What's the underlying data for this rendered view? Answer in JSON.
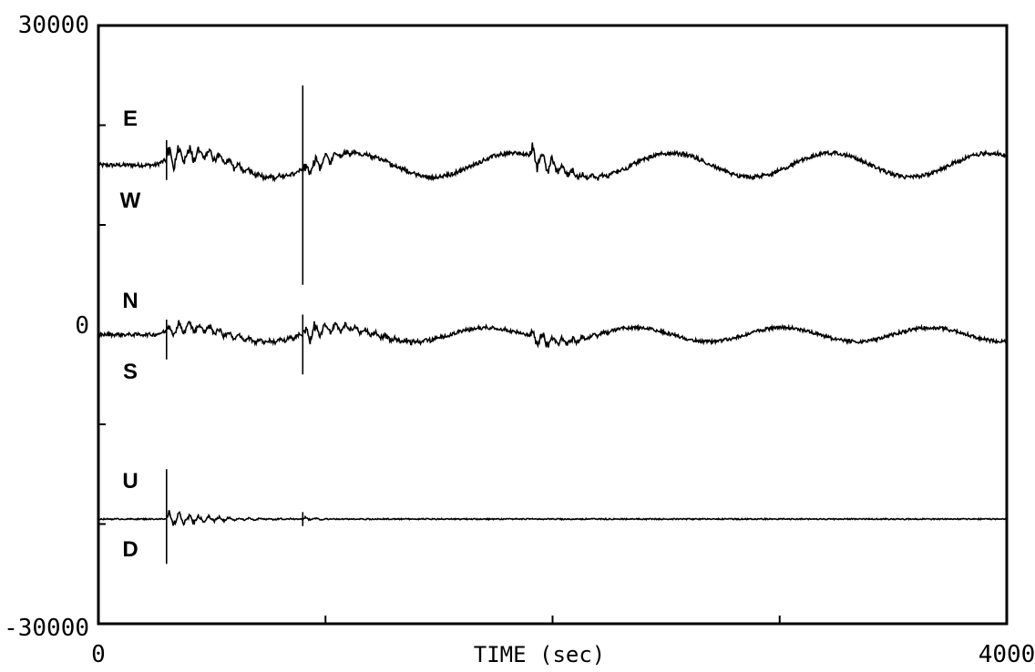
{
  "chart_data": {
    "type": "line",
    "title": "",
    "xlabel": "TIME (sec)",
    "ylabel": "",
    "xlim": [
      0,
      4000
    ],
    "ylim": [
      -30000,
      30000
    ],
    "x_tick_labels": [
      "0",
      "4000"
    ],
    "y_tick_labels": [
      "30000",
      "0",
      "-30000"
    ],
    "x_minor_ticks": [
      1000,
      2000,
      3000
    ],
    "y_minor_ticks": [
      20000,
      10000,
      -10000,
      -20000
    ],
    "grid": false,
    "legend": "none",
    "channel_labels": [
      {
        "upper": "E",
        "lower": "W"
      },
      {
        "upper": "N",
        "lower": "S"
      },
      {
        "upper": "U",
        "lower": "D"
      }
    ],
    "series": [
      {
        "baseline": 16000,
        "events": [
          {
            "t": 300,
            "up": 2500,
            "down": -1500,
            "decay": 250,
            "amp": 1500
          },
          {
            "t": 900,
            "up": 8000,
            "down": -12000,
            "decay": 200,
            "amp": 1200
          },
          {
            "t": 1900,
            "up": 0,
            "down": 0,
            "decay": 150,
            "amp": 1700
          }
        ],
        "wave": {
          "amp": 1200,
          "period": 700
        },
        "noise": 400
      },
      {
        "baseline": -1000,
        "events": [
          {
            "t": 300,
            "up": 1500,
            "down": -2500,
            "decay": 300,
            "amp": 1000
          },
          {
            "t": 900,
            "up": 2000,
            "down": -4000,
            "decay": 250,
            "amp": 1200
          },
          {
            "t": 1900,
            "up": 0,
            "down": 0,
            "decay": 150,
            "amp": 1200
          }
        ],
        "wave": {
          "amp": 700,
          "period": 650
        },
        "noise": 350
      },
      {
        "baseline": -19500,
        "events": [
          {
            "t": 300,
            "up": 5000,
            "down": -4500,
            "decay": 180,
            "amp": 1000
          },
          {
            "t": 900,
            "up": 700,
            "down": -700,
            "decay": 60,
            "amp": 300
          }
        ],
        "wave": {
          "amp": 0,
          "period": 1000
        },
        "noise": 120
      }
    ]
  }
}
